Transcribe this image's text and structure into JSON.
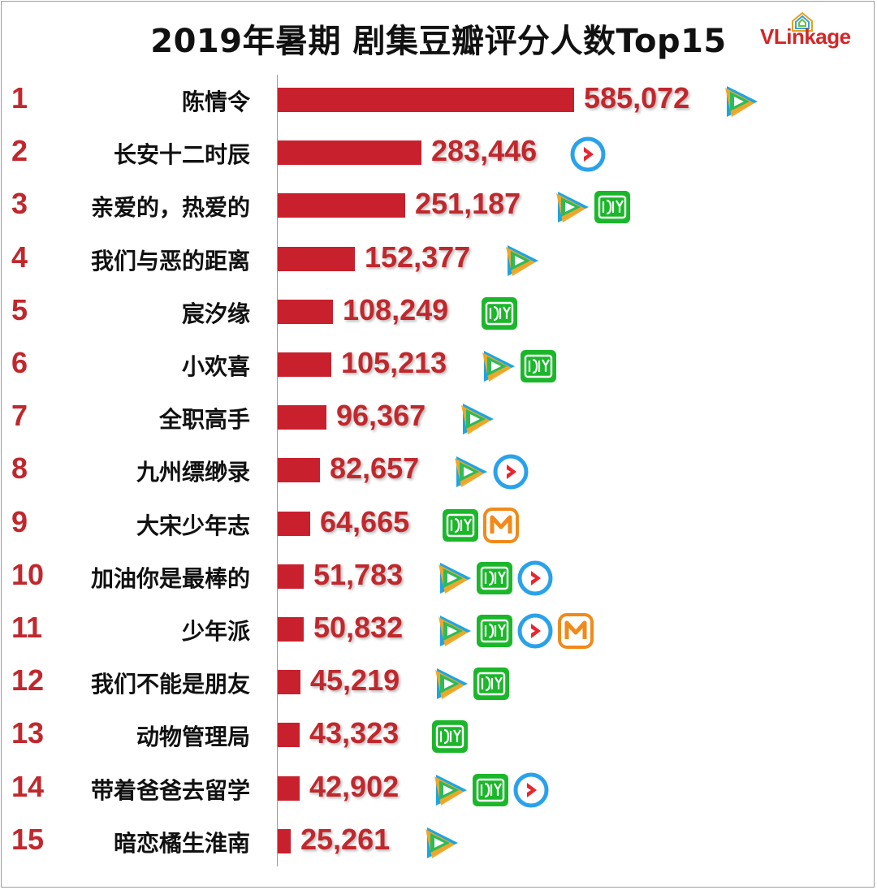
{
  "chart_data": {
    "type": "bar",
    "orientation": "horizontal",
    "title": "2019年暑期 剧集豆瓣评分人数Top15",
    "xlabel": "",
    "ylabel": "",
    "xlim": [
      0,
      620000
    ],
    "grid": false,
    "legend": "none",
    "series": [
      {
        "name": "豆瓣评分人数",
        "color": "#c8202c"
      }
    ],
    "rows": [
      {
        "rank": "1",
        "name": "陈情令",
        "value": 585072,
        "label": "585,072",
        "platforms": [
          "tencent-video"
        ]
      },
      {
        "rank": "2",
        "name": "长安十二时辰",
        "value": 283446,
        "label": "283,446",
        "platforms": [
          "youku"
        ]
      },
      {
        "rank": "3",
        "name": "亲爱的，热爱的",
        "value": 251187,
        "label": "251,187",
        "platforms": [
          "tencent-video",
          "iqiyi"
        ]
      },
      {
        "rank": "4",
        "name": "我们与恶的距离",
        "value": 152377,
        "label": "152,377",
        "platforms": [
          "tencent-video"
        ]
      },
      {
        "rank": "5",
        "name": "宸汐缘",
        "value": 108249,
        "label": "108,249",
        "platforms": [
          "iqiyi"
        ]
      },
      {
        "rank": "6",
        "name": "小欢喜",
        "value": 105213,
        "label": "105,213",
        "platforms": [
          "tencent-video",
          "iqiyi"
        ]
      },
      {
        "rank": "7",
        "name": "全职高手",
        "value": 96367,
        "label": "96,367",
        "platforms": [
          "tencent-video"
        ]
      },
      {
        "rank": "8",
        "name": "九州缥缈录",
        "value": 82657,
        "label": "82,657",
        "platforms": [
          "tencent-video",
          "youku"
        ]
      },
      {
        "rank": "9",
        "name": "大宋少年志",
        "value": 64665,
        "label": "64,665",
        "platforms": [
          "iqiyi",
          "mgtv"
        ]
      },
      {
        "rank": "10",
        "name": "加油你是最棒的",
        "value": 51783,
        "label": "51,783",
        "platforms": [
          "tencent-video",
          "iqiyi",
          "youku"
        ]
      },
      {
        "rank": "11",
        "name": "少年派",
        "value": 50832,
        "label": "50,832",
        "platforms": [
          "tencent-video",
          "iqiyi",
          "youku",
          "mgtv"
        ]
      },
      {
        "rank": "12",
        "name": "我们不能是朋友",
        "value": 45219,
        "label": "45,219",
        "platforms": [
          "tencent-video",
          "iqiyi"
        ]
      },
      {
        "rank": "13",
        "name": "动物管理局",
        "value": 43323,
        "label": "43,323",
        "platforms": [
          "iqiyi"
        ]
      },
      {
        "rank": "14",
        "name": "带着爸爸去留学",
        "value": 42902,
        "label": "42,902",
        "platforms": [
          "tencent-video",
          "iqiyi",
          "youku"
        ]
      },
      {
        "rank": "15",
        "name": "暗恋橘生淮南",
        "value": 25261,
        "label": "25,261",
        "platforms": [
          "tencent-video"
        ]
      }
    ]
  },
  "brand": {
    "logo_text_main": "VLink",
    "logo_text_tail": "age",
    "logo_icon": "house-frame-icon"
  },
  "colors": {
    "bar": "#c8202c",
    "rank_text": "#c0282d",
    "value_text": "#c0282d",
    "logo": "#d22626",
    "tencent_blue": "#1aa5e6",
    "tencent_orange": "#f6a623",
    "tencent_green": "#2dbb57",
    "iqiyi_green": "#1bb72a",
    "youku_blue": "#2aa2ea",
    "youku_red": "#e8262e",
    "mgtv_orange": "#f08a1a"
  }
}
